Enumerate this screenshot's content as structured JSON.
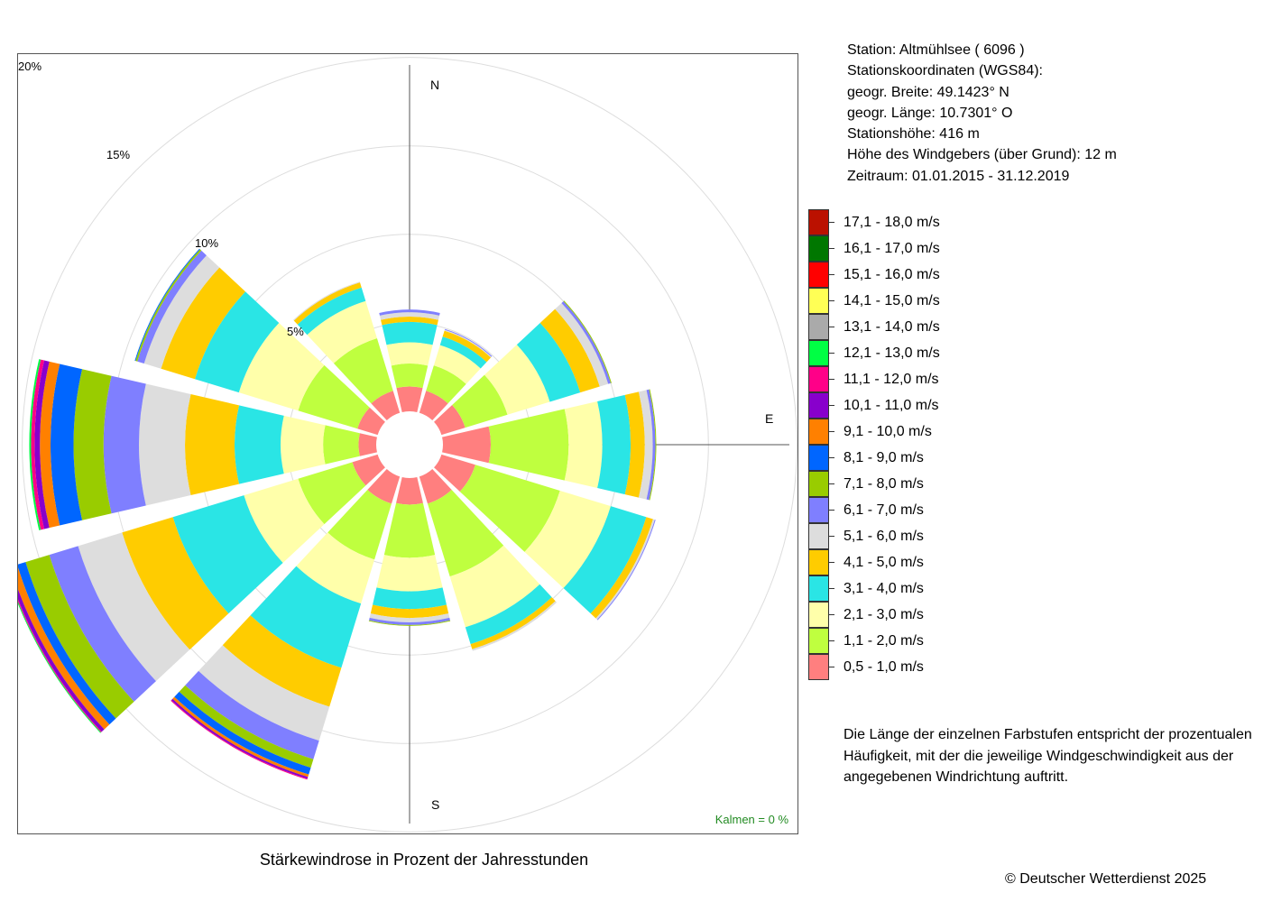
{
  "chart_data": {
    "type": "windrose",
    "title": "Stärkewindrose in Prozent der Jahresstunden",
    "units": "%",
    "rings": [
      5,
      10,
      15,
      20
    ],
    "ring_labels": [
      "5%",
      "10%",
      "15%",
      "20%"
    ],
    "direction_labels": {
      "N": "N",
      "E": "E",
      "S": "S"
    },
    "calm": "Kalmen  =  0 %",
    "bins": [
      {
        "label": "0,5 - 1,0 m/s",
        "color": "#FF7F7F"
      },
      {
        "label": "1,1 - 2,0 m/s",
        "color": "#BFFF3F"
      },
      {
        "label": "2,1 - 3,0 m/s",
        "color": "#FFFFAA"
      },
      {
        "label": "3,1 - 4,0 m/s",
        "color": "#2AE5E5"
      },
      {
        "label": "4,1 - 5,0 m/s",
        "color": "#FFCC00"
      },
      {
        "label": "5,1 - 6,0 m/s",
        "color": "#DDDDDD"
      },
      {
        "label": "6,1 - 7,0 m/s",
        "color": "#7F7FFF"
      },
      {
        "label": "7,1 - 8,0 m/s",
        "color": "#99CC00"
      },
      {
        "label": "8,1 - 9,0 m/s",
        "color": "#0066FF"
      },
      {
        "label": "9,1 - 10,0 m/s",
        "color": "#FF8000"
      },
      {
        "label": "10,1 - 11,0 m/s",
        "color": "#8800CC"
      },
      {
        "label": "11,1 - 12,0 m/s",
        "color": "#FF0088"
      },
      {
        "label": "12,1 - 13,0 m/s",
        "color": "#00FF44"
      },
      {
        "label": "13,1 - 14,0 m/s",
        "color": "#AAAAAA"
      },
      {
        "label": "14,1 - 15,0 m/s",
        "color": "#FFFF55"
      },
      {
        "label": "15,1 - 16,0 m/s",
        "color": "#FF0000"
      },
      {
        "label": "16,1 - 17,0 m/s",
        "color": "#007700"
      },
      {
        "label": "17,1 - 18,0 m/s",
        "color": "#BB1100"
      }
    ],
    "sectors": [
      {
        "direction_deg": 0,
        "values": [
          1.4,
          1.3,
          1.2,
          1.15,
          0.3,
          0.25,
          0.15
        ]
      },
      {
        "direction_deg": 30,
        "values": [
          1.3,
          1.5,
          1.2,
          0.5,
          0.35,
          0.05,
          0.05
        ]
      },
      {
        "direction_deg": 60,
        "values": [
          1.4,
          2.5,
          2.5,
          1.8,
          1.15,
          0.5,
          0.15,
          0.05
        ]
      },
      {
        "direction_deg": 90,
        "values": [
          2.7,
          4.4,
          1.9,
          1.6,
          0.8,
          0.45,
          0.15,
          0.05
        ]
      },
      {
        "direction_deg": 120,
        "values": [
          2.0,
          5.0,
          3.0,
          2.1,
          0.4,
          0.1,
          0.05
        ]
      },
      {
        "direction_deg": 150,
        "values": [
          1.6,
          4.3,
          3.0,
          1.0,
          0.3,
          0.1
        ]
      },
      {
        "direction_deg": 180,
        "values": [
          1.5,
          3.0,
          1.9,
          1.0,
          0.5,
          0.25,
          0.15,
          0.05
        ]
      },
      {
        "direction_deg": 210,
        "values": [
          1.6,
          3.3,
          2.6,
          3.8,
          2.3,
          2.0,
          1.1,
          0.5,
          0.4,
          0.15,
          0.1,
          0.05
        ]
      },
      {
        "direction_deg": 240,
        "values": [
          1.5,
          3.2,
          3.2,
          4.2,
          3.0,
          2.6,
          1.7,
          1.4,
          0.5,
          0.4,
          0.2,
          0.05,
          0.05
        ]
      },
      {
        "direction_deg": 270,
        "values": [
          1.0,
          2.0,
          2.4,
          2.6,
          2.8,
          2.6,
          2.0,
          1.7,
          1.3,
          0.6,
          0.3,
          0.2,
          0.1
        ]
      },
      {
        "direction_deg": 300,
        "values": [
          1.2,
          3.5,
          3.5,
          2.6,
          2.0,
          1.0,
          0.4,
          0.1,
          0.05
        ]
      },
      {
        "direction_deg": 330,
        "values": [
          1.3,
          3.1,
          2.2,
          0.8,
          0.3,
          0.05
        ]
      }
    ]
  },
  "station_info": {
    "station": "Station:  Altmühlsee  ( 6096 )",
    "coords_heading": "Stationskoordinaten (WGS84):",
    "lat": "geogr. Breite: 49.1423° N",
    "lon": "geogr. Länge: 10.7301° O",
    "elevation": "Stationshöhe: 416 m",
    "anemometer_height": "Höhe des Windgebers (über Grund): 12 m",
    "period": "Zeitraum: 01.01.2015 - 31.12.2019"
  },
  "explanation": "Die Länge der einzelnen Farbstufen entspricht der prozentualen Häufigkeit, mit der die jeweilige Windgeschwindigkeit aus der angegebenen Windrichtung auftritt.",
  "copyright": "© Deutscher Wetterdienst  2025"
}
